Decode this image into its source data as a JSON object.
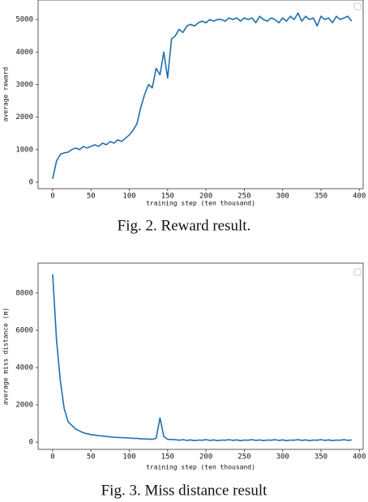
{
  "chart_data": [
    {
      "type": "line",
      "caption": "Fig. 2. Reward result.",
      "xlabel": "training step (ten thousand)",
      "ylabel": "average reward",
      "color": "#1f6fae",
      "x": [
        0,
        5,
        10,
        15,
        20,
        25,
        30,
        35,
        40,
        45,
        50,
        55,
        60,
        65,
        70,
        75,
        80,
        85,
        90,
        95,
        100,
        105,
        110,
        115,
        120,
        125,
        130,
        135,
        140,
        145,
        150,
        155,
        160,
        165,
        170,
        175,
        180,
        185,
        190,
        195,
        200,
        205,
        210,
        215,
        220,
        225,
        230,
        235,
        240,
        245,
        250,
        255,
        260,
        265,
        270,
        275,
        280,
        285,
        290,
        295,
        300,
        305,
        310,
        315,
        320,
        325,
        330,
        335,
        340,
        345,
        350,
        355,
        360,
        365,
        370,
        375,
        380,
        385,
        390
      ],
      "values": [
        100,
        650,
        850,
        900,
        920,
        1000,
        1050,
        1000,
        1100,
        1050,
        1100,
        1150,
        1100,
        1200,
        1150,
        1250,
        1200,
        1300,
        1250,
        1350,
        1450,
        1600,
        1800,
        2300,
        2700,
        3000,
        2900,
        3500,
        3300,
        4000,
        3200,
        4400,
        4500,
        4700,
        4600,
        4800,
        4850,
        4800,
        4900,
        4950,
        4900,
        5000,
        4950,
        5000,
        5000,
        4950,
        5050,
        5000,
        5050,
        4950,
        5050,
        5000,
        5050,
        4900,
        5100,
        5000,
        4950,
        5050,
        5000,
        4900,
        5050,
        4950,
        5100,
        5000,
        5200,
        4950,
        5100,
        5000,
        5050,
        4800,
        5100,
        5000,
        5050,
        4900,
        5100,
        5000,
        5050,
        5100,
        4950
      ],
      "xlim": [
        -19,
        405
      ],
      "ylim": [
        -200,
        5600
      ],
      "xticks": [
        0,
        50,
        100,
        150,
        200,
        250,
        300,
        350,
        400
      ],
      "yticks": [
        0,
        1000,
        2000,
        3000,
        4000,
        5000
      ]
    },
    {
      "type": "line",
      "caption": "Fig. 3. Miss distance result",
      "xlabel": "training step (ten thousand)",
      "ylabel": "average miss distance (m)",
      "color": "#1f6fae",
      "x": [
        0,
        5,
        10,
        15,
        20,
        25,
        30,
        35,
        40,
        45,
        50,
        55,
        60,
        65,
        70,
        75,
        80,
        85,
        90,
        95,
        100,
        105,
        110,
        115,
        120,
        125,
        130,
        135,
        140,
        145,
        150,
        155,
        160,
        165,
        170,
        175,
        180,
        185,
        190,
        195,
        200,
        205,
        210,
        215,
        220,
        225,
        230,
        235,
        240,
        245,
        250,
        255,
        260,
        265,
        270,
        275,
        280,
        285,
        290,
        295,
        300,
        305,
        310,
        315,
        320,
        325,
        330,
        335,
        340,
        345,
        350,
        355,
        360,
        365,
        370,
        375,
        380,
        385,
        390
      ],
      "values": [
        9000,
        5500,
        3300,
        1800,
        1100,
        900,
        700,
        600,
        500,
        450,
        400,
        380,
        350,
        330,
        300,
        280,
        260,
        250,
        240,
        230,
        220,
        200,
        200,
        180,
        170,
        160,
        150,
        200,
        1300,
        300,
        150,
        140,
        130,
        100,
        130,
        90,
        120,
        80,
        110,
        100,
        130,
        90,
        120,
        80,
        110,
        100,
        130,
        90,
        120,
        80,
        110,
        100,
        130,
        90,
        120,
        80,
        110,
        100,
        130,
        90,
        120,
        80,
        110,
        100,
        130,
        90,
        120,
        80,
        110,
        100,
        130,
        90,
        120,
        80,
        110,
        100,
        130,
        90,
        120
      ],
      "xlim": [
        -19,
        405
      ],
      "ylim": [
        -390,
        9600
      ],
      "xticks": [
        0,
        50,
        100,
        150,
        200,
        250,
        300,
        350,
        400
      ],
      "yticks": [
        0,
        2000,
        4000,
        6000,
        8000
      ]
    }
  ]
}
